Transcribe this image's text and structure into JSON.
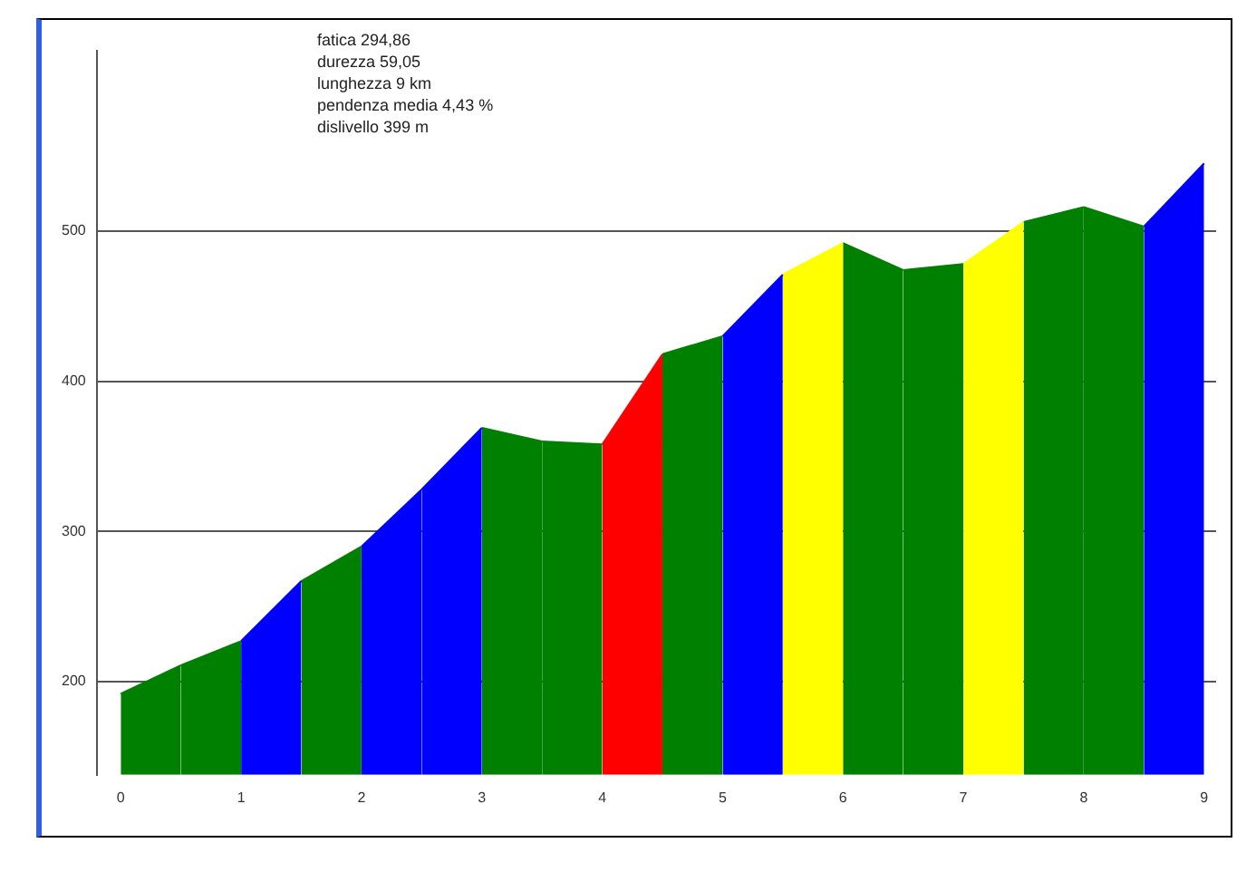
{
  "chart_data": {
    "type": "area",
    "annotations": [
      "fatica 294,86",
      "durezza 59,05",
      "lunghezza 9 km",
      "pendenza media 4,43 %",
      "dislivello 399 m"
    ],
    "series": [
      {
        "color": "#008000",
        "x": [
          0,
          0.5
        ],
        "values": [
          192,
          211
        ]
      },
      {
        "color": "#008000",
        "x": [
          0.5,
          1
        ],
        "values": [
          211,
          227
        ]
      },
      {
        "color": "#0000ff",
        "x": [
          1,
          1.5
        ],
        "values": [
          227,
          267
        ]
      },
      {
        "color": "#008000",
        "x": [
          1.5,
          2
        ],
        "values": [
          267,
          290
        ]
      },
      {
        "color": "#0000ff",
        "x": [
          2,
          2.5
        ],
        "values": [
          290,
          328
        ]
      },
      {
        "color": "#0000ff",
        "x": [
          2.5,
          3
        ],
        "values": [
          328,
          369
        ]
      },
      {
        "color": "#008000",
        "x": [
          3,
          3.5
        ],
        "values": [
          369,
          360
        ]
      },
      {
        "color": "#008000",
        "x": [
          3.5,
          4
        ],
        "values": [
          360,
          358
        ]
      },
      {
        "color": "#ff0000",
        "x": [
          4,
          4.5
        ],
        "values": [
          358,
          418
        ]
      },
      {
        "color": "#008000",
        "x": [
          4.5,
          5
        ],
        "values": [
          418,
          430
        ]
      },
      {
        "color": "#0000ff",
        "x": [
          5,
          5.5
        ],
        "values": [
          430,
          471
        ]
      },
      {
        "color": "#ffff00",
        "x": [
          5.5,
          6
        ],
        "values": [
          471,
          492
        ]
      },
      {
        "color": "#008000",
        "x": [
          6,
          6.5
        ],
        "values": [
          492,
          474
        ]
      },
      {
        "color": "#008000",
        "x": [
          6.5,
          7
        ],
        "values": [
          474,
          478
        ]
      },
      {
        "color": "#ffff00",
        "x": [
          7,
          7.5
        ],
        "values": [
          478,
          506
        ]
      },
      {
        "color": "#008000",
        "x": [
          7.5,
          8
        ],
        "values": [
          506,
          516
        ]
      },
      {
        "color": "#008000",
        "x": [
          8,
          8.5
        ],
        "values": [
          516,
          503
        ]
      },
      {
        "color": "#0000ff",
        "x": [
          8.5,
          9
        ],
        "values": [
          503,
          545
        ]
      }
    ],
    "xlim": [
      -0.2,
      9.1
    ],
    "xticks": [
      0,
      1,
      2,
      3,
      4,
      5,
      6,
      7,
      8,
      9
    ],
    "ylim": [
      138,
      620
    ],
    "yticks": [
      200,
      300,
      400,
      500
    ],
    "grid": "y",
    "legend": false
  }
}
